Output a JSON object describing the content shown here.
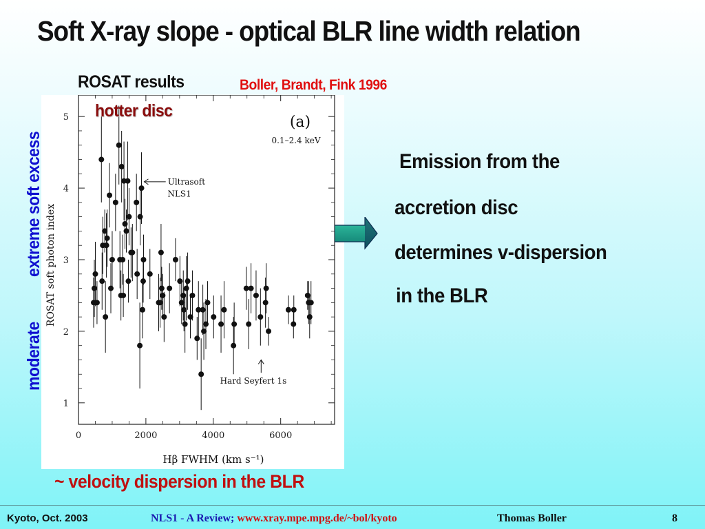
{
  "slide": {
    "title": "Soft X-ray slope - optical BLR line width relation",
    "rosat_label": "ROSAT results",
    "citation": "Boller, Brandt, Fink 1996",
    "hotter_disc": "hotter disc",
    "y_side_top": "extreme soft excess",
    "y_side_bottom": "moderate",
    "velocity_caption": "~ velocity dispersion in the BLR",
    "body_lines": [
      "Emission from the",
      "accretion disc",
      "determines v-dispersion",
      "in the BLR"
    ]
  },
  "footer": {
    "left": "Kyoto, Oct. 2003",
    "review": "NLS1 - A Review;",
    "url": "www.xray.mpe.mpg.de/~bol/kyoto",
    "author": "Thomas Boller",
    "page": "8"
  },
  "colors": {
    "arrow_fill": "#1aa08c",
    "arrow_dark": "#0e2f52",
    "title_text": "#111111",
    "citation_red": "#e01010",
    "side_blue": "#1010d0",
    "hotter_dark_red": "#8a0d0d"
  },
  "chart_data": {
    "type": "scatter",
    "title": "",
    "panel_label": "(a)",
    "energy_band": "0.1–2.4 keV",
    "xlabel": "Hβ  FWHM  (km s⁻¹)",
    "ylabel": "ROSAT soft photon index",
    "xlim": [
      0,
      7600
    ],
    "ylim": [
      0.7,
      5.3
    ],
    "xticks": [
      "0",
      "2000",
      "4000",
      "6000"
    ],
    "yticks": [
      "1",
      "2",
      "3",
      "4",
      "5"
    ],
    "annotations": [
      {
        "text": "Ultrasoft",
        "x": 2650,
        "y": 4.05
      },
      {
        "text": "NLS1",
        "x": 3200,
        "y": 3.88
      },
      {
        "text": "Hard Seyfert 1s",
        "x": 4200,
        "y": 1.27
      }
    ],
    "points": [
      {
        "x": 450,
        "y": 2.4,
        "yerr": 0.35
      },
      {
        "x": 470,
        "y": 2.6,
        "yerr": 0.4
      },
      {
        "x": 500,
        "y": 2.8,
        "yerr": 0.45
      },
      {
        "x": 550,
        "y": 2.4,
        "yerr": 0.3
      },
      {
        "x": 680,
        "y": 4.4,
        "yerr": 0.6
      },
      {
        "x": 700,
        "y": 2.7,
        "yerr": 0.4
      },
      {
        "x": 720,
        "y": 3.2,
        "yerr": 0.4
      },
      {
        "x": 780,
        "y": 3.4,
        "yerr": 0.3
      },
      {
        "x": 800,
        "y": 2.2,
        "yerr": 0.5
      },
      {
        "x": 830,
        "y": 3.2,
        "yerr": 0.45
      },
      {
        "x": 850,
        "y": 3.3,
        "yerr": 0.4
      },
      {
        "x": 920,
        "y": 3.9,
        "yerr": 0.45
      },
      {
        "x": 960,
        "y": 2.6,
        "yerr": 0.35
      },
      {
        "x": 1000,
        "y": 3.0,
        "yerr": 0.4
      },
      {
        "x": 1100,
        "y": 3.8,
        "yerr": 0.4
      },
      {
        "x": 1200,
        "y": 4.6,
        "yerr": 0.55
      },
      {
        "x": 1230,
        "y": 3.0,
        "yerr": 0.4
      },
      {
        "x": 1260,
        "y": 2.5,
        "yerr": 0.35
      },
      {
        "x": 1280,
        "y": 4.3,
        "yerr": 0.5
      },
      {
        "x": 1310,
        "y": 3.0,
        "yerr": 0.35
      },
      {
        "x": 1330,
        "y": 2.5,
        "yerr": 0.3
      },
      {
        "x": 1350,
        "y": 4.1,
        "yerr": 0.55
      },
      {
        "x": 1380,
        "y": 3.5,
        "yerr": 0.35
      },
      {
        "x": 1420,
        "y": 3.4,
        "yerr": 0.3
      },
      {
        "x": 1460,
        "y": 4.1,
        "yerr": 0.55
      },
      {
        "x": 1500,
        "y": 3.6,
        "yerr": 0.4
      },
      {
        "x": 1480,
        "y": 2.7,
        "yerr": 0.3
      },
      {
        "x": 1560,
        "y": 3.1,
        "yerr": 0.35
      },
      {
        "x": 1600,
        "y": 3.1,
        "yerr": 0.4
      },
      {
        "x": 1720,
        "y": 3.8,
        "yerr": 0.4
      },
      {
        "x": 1740,
        "y": 2.8,
        "yerr": 0.35
      },
      {
        "x": 1820,
        "y": 1.8,
        "yerr": 0.6
      },
      {
        "x": 1830,
        "y": 3.6,
        "yerr": 0.4
      },
      {
        "x": 1870,
        "y": 4.0,
        "yerr": 0.5
      },
      {
        "x": 1920,
        "y": 2.7,
        "yerr": 0.3
      },
      {
        "x": 1900,
        "y": 2.3,
        "yerr": 0.4
      },
      {
        "x": 1930,
        "y": 3.0,
        "yerr": 0.35
      },
      {
        "x": 2120,
        "y": 2.8,
        "yerr": 0.35
      },
      {
        "x": 2380,
        "y": 2.4,
        "yerr": 0.4
      },
      {
        "x": 2420,
        "y": 2.4,
        "yerr": 0.35
      },
      {
        "x": 2450,
        "y": 3.1,
        "yerr": 0.4
      },
      {
        "x": 2470,
        "y": 2.6,
        "yerr": 0.3
      },
      {
        "x": 2500,
        "y": 2.5,
        "yerr": 0.3
      },
      {
        "x": 2540,
        "y": 2.2,
        "yerr": 0.35
      },
      {
        "x": 2700,
        "y": 2.6,
        "yerr": 0.35
      },
      {
        "x": 2880,
        "y": 3.0,
        "yerr": 0.3
      },
      {
        "x": 3010,
        "y": 2.7,
        "yerr": 0.35
      },
      {
        "x": 3060,
        "y": 2.4,
        "yerr": 0.3
      },
      {
        "x": 3110,
        "y": 2.5,
        "yerr": 0.35
      },
      {
        "x": 3130,
        "y": 2.3,
        "yerr": 0.3
      },
      {
        "x": 3160,
        "y": 2.1,
        "yerr": 0.4
      },
      {
        "x": 3200,
        "y": 2.6,
        "yerr": 0.45
      },
      {
        "x": 3240,
        "y": 2.7,
        "yerr": 0.4
      },
      {
        "x": 3320,
        "y": 2.2,
        "yerr": 0.3
      },
      {
        "x": 3380,
        "y": 2.5,
        "yerr": 0.35
      },
      {
        "x": 3520,
        "y": 1.9,
        "yerr": 0.3
      },
      {
        "x": 3560,
        "y": 2.3,
        "yerr": 0.4
      },
      {
        "x": 3640,
        "y": 1.4,
        "yerr": 0.5
      },
      {
        "x": 3690,
        "y": 2.3,
        "yerr": 0.35
      },
      {
        "x": 3720,
        "y": 2.0,
        "yerr": 0.4
      },
      {
        "x": 3780,
        "y": 2.1,
        "yerr": 0.35
      },
      {
        "x": 3830,
        "y": 2.4,
        "yerr": 0.3
      },
      {
        "x": 4010,
        "y": 2.2,
        "yerr": 0.3
      },
      {
        "x": 4230,
        "y": 2.1,
        "yerr": 0.4
      },
      {
        "x": 4320,
        "y": 2.3,
        "yerr": 0.4
      },
      {
        "x": 4600,
        "y": 1.8,
        "yerr": 0.4
      },
      {
        "x": 4620,
        "y": 2.1,
        "yerr": 0.3
      },
      {
        "x": 4980,
        "y": 2.6,
        "yerr": 0.3
      },
      {
        "x": 5050,
        "y": 2.1,
        "yerr": 0.35
      },
      {
        "x": 5120,
        "y": 2.6,
        "yerr": 0.35
      },
      {
        "x": 5270,
        "y": 2.5,
        "yerr": 0.35
      },
      {
        "x": 5400,
        "y": 2.2,
        "yerr": 0.4
      },
      {
        "x": 5550,
        "y": 2.4,
        "yerr": 0.35
      },
      {
        "x": 5570,
        "y": 2.6,
        "yerr": 0.35
      },
      {
        "x": 5640,
        "y": 2.0,
        "yerr": 0.2
      },
      {
        "x": 6230,
        "y": 2.3,
        "yerr": 0.2
      },
      {
        "x": 6380,
        "y": 2.1,
        "yerr": 0.2
      },
      {
        "x": 6390,
        "y": 2.3,
        "yerr": 0.2
      },
      {
        "x": 6800,
        "y": 2.5,
        "yerr": 0.2
      },
      {
        "x": 6830,
        "y": 2.4,
        "yerr": 0.3
      },
      {
        "x": 6860,
        "y": 2.2,
        "yerr": 0.3
      },
      {
        "x": 6900,
        "y": 2.4,
        "yerr": 0.3
      }
    ]
  }
}
